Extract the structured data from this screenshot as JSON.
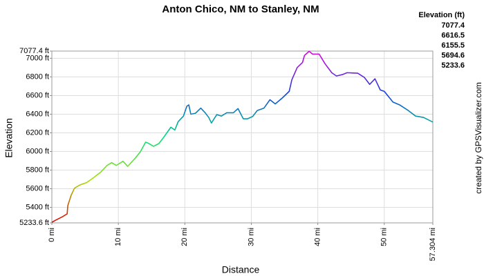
{
  "chart_data": {
    "type": "line",
    "title": "Anton Chico, NM to Stanley, NM",
    "x_label": "Distance",
    "y_label": "Elevation",
    "credit": "created by GPSVisualizer.com",
    "legend": {
      "title": "Elevation (ft)",
      "entries": [
        {
          "value": 7077.4,
          "color": "#e000e0"
        },
        {
          "value": 6616.5,
          "color": "#1040e0"
        },
        {
          "value": 6155.5,
          "color": "#00e080"
        },
        {
          "value": 5694.6,
          "color": "#a8e000"
        },
        {
          "value": 5233.6,
          "color": "#e00000"
        }
      ]
    },
    "xlim": [
      0,
      57.304
    ],
    "ylim": [
      5233.6,
      7077.4
    ],
    "xticks": [
      {
        "value": 0,
        "label": "0 mi"
      },
      {
        "value": 10,
        "label": "10 mi"
      },
      {
        "value": 20,
        "label": "20 mi"
      },
      {
        "value": 30,
        "label": "30 mi"
      },
      {
        "value": 40,
        "label": "40 mi"
      },
      {
        "value": 50,
        "label": "50 mi"
      },
      {
        "value": 57.304,
        "label": "57.304 mi"
      }
    ],
    "yticks": [
      {
        "value": 5233.6,
        "label": "5233.6 ft"
      },
      {
        "value": 5400,
        "label": "5400 ft"
      },
      {
        "value": 5600,
        "label": "5600 ft"
      },
      {
        "value": 5800,
        "label": "5800 ft"
      },
      {
        "value": 6000,
        "label": "6000 ft"
      },
      {
        "value": 6200,
        "label": "6200 ft"
      },
      {
        "value": 6400,
        "label": "6400 ft"
      },
      {
        "value": 6600,
        "label": "6600 ft"
      },
      {
        "value": 6800,
        "label": "6800 ft"
      },
      {
        "value": 7000,
        "label": "7000 ft"
      },
      {
        "value": 7077.4,
        "label": "7077.4 ft"
      }
    ],
    "grid": true,
    "series": [
      {
        "name": "Elevation",
        "x": [
          0,
          0.5,
          1.6,
          2.3,
          2.4,
          2.9,
          3.4,
          4.2,
          5.2,
          6.2,
          7.3,
          8.3,
          9.0,
          9.7,
          10.7,
          11.4,
          12.5,
          13.3,
          14.1,
          14.6,
          15.3,
          16.1,
          16.8,
          17.9,
          18.5,
          19.0,
          19.8,
          20.3,
          20.6,
          20.9,
          21.6,
          22.4,
          23.0,
          23.6,
          24.0,
          24.8,
          25.5,
          26.3,
          27.3,
          28.0,
          28.8,
          29.4,
          30.2,
          30.9,
          31.9,
          32.8,
          33.6,
          34.6,
          35.7,
          36.1,
          36.9,
          37.7,
          38.0,
          38.7,
          39.2,
          40.2,
          41.1,
          42.1,
          42.8,
          43.7,
          44.4,
          46.0,
          47.0,
          47.8,
          48.6,
          49.4,
          50.0,
          51.3,
          52.3,
          53.6,
          54.7,
          55.9,
          57.304
        ],
        "values": [
          5240,
          5260,
          5300,
          5330,
          5420,
          5530,
          5605,
          5640,
          5665,
          5715,
          5775,
          5850,
          5880,
          5850,
          5895,
          5840,
          5925,
          5995,
          6100,
          6085,
          6055,
          6085,
          6150,
          6260,
          6230,
          6320,
          6380,
          6485,
          6500,
          6400,
          6410,
          6465,
          6420,
          6365,
          6305,
          6395,
          6380,
          6415,
          6415,
          6460,
          6350,
          6350,
          6375,
          6440,
          6465,
          6555,
          6510,
          6570,
          6645,
          6770,
          6900,
          6955,
          7030,
          7075,
          7045,
          7045,
          6940,
          6845,
          6810,
          6825,
          6845,
          6840,
          6795,
          6720,
          6780,
          6660,
          6645,
          6530,
          6500,
          6440,
          6380,
          6365,
          6315
        ]
      }
    ]
  }
}
